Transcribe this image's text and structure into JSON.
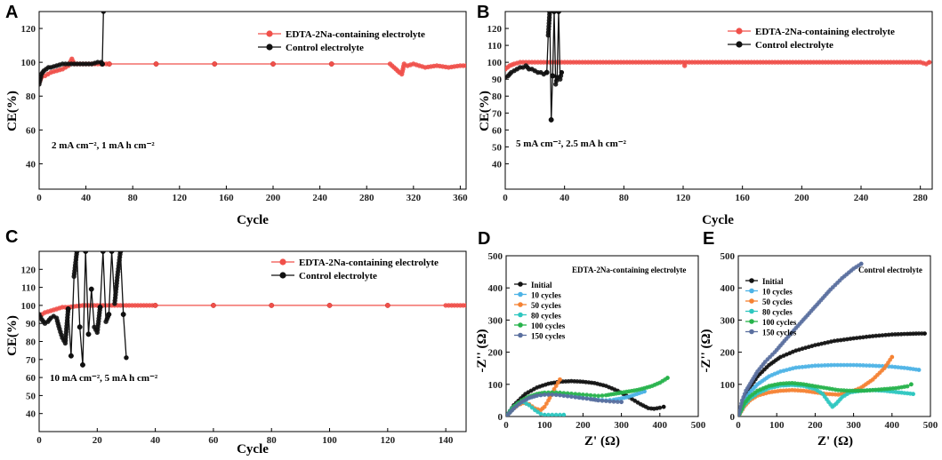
{
  "figure": {
    "colors": {
      "red": "#f0504a",
      "black": "#111111",
      "teal": "#2ec7c0",
      "skyblue": "#4db3e6",
      "orange": "#f58233",
      "green": "#27b34b",
      "slate": "#5a6f9f"
    }
  },
  "chart_data": [
    {
      "id": "A",
      "panel_label": "A",
      "type": "line",
      "title": "",
      "xlabel": "Cycle",
      "ylabel": "CE(%)",
      "xlim": [
        0,
        365
      ],
      "ylim": [
        25,
        130
      ],
      "xticks": [
        0,
        40,
        80,
        120,
        160,
        200,
        240,
        280,
        320,
        360
      ],
      "yticks": [
        40,
        60,
        80,
        100,
        120
      ],
      "annotation": "2 mA cm⁻², 1 mA h cm⁻²",
      "legend": [
        "EDTA-2Na-containing electrolyte",
        "Control electrolyte"
      ],
      "series": [
        {
          "name": "EDTA-2Na-containing electrolyte",
          "color": "red",
          "x": [
            0,
            2,
            5,
            10,
            15,
            20,
            25,
            28,
            30,
            40,
            60,
            100,
            150,
            200,
            250,
            300,
            305,
            308,
            310,
            312,
            315,
            320,
            330,
            340,
            350,
            360,
            365
          ],
          "y": [
            88,
            91,
            92,
            94,
            95,
            96,
            98,
            102,
            99,
            99,
            99,
            99,
            99,
            99,
            99,
            99,
            96,
            94,
            93,
            99,
            98,
            99,
            97,
            98,
            97,
            98,
            98
          ]
        },
        {
          "name": "Control electrolyte",
          "color": "black",
          "x": [
            0,
            1,
            2,
            4,
            6,
            8,
            10,
            15,
            20,
            25,
            30,
            35,
            40,
            45,
            50,
            53,
            54,
            55
          ],
          "y": [
            87,
            90,
            93,
            95,
            96,
            97,
            97,
            98,
            99,
            99,
            99,
            99,
            99,
            99,
            100,
            100,
            99,
            130
          ]
        }
      ]
    },
    {
      "id": "B",
      "panel_label": "B",
      "type": "line",
      "title": "",
      "xlabel": "Cycle",
      "ylabel": "CE(%)",
      "xlim": [
        0,
        288
      ],
      "ylim": [
        25,
        130
      ],
      "xticks": [
        0,
        40,
        80,
        120,
        160,
        200,
        240,
        280
      ],
      "yticks": [
        40,
        50,
        60,
        70,
        80,
        90,
        100,
        110,
        120
      ],
      "annotation": "5 mA cm⁻², 2.5 mA h cm⁻²",
      "legend": [
        "EDTA-2Na-containing electrolyte",
        "Control electrolyte"
      ],
      "series": [
        {
          "name": "EDTA-2Na-containing electrolyte",
          "color": "red",
          "x": [
            0,
            3,
            6,
            10,
            20,
            40,
            60,
            80,
            100,
            120,
            121,
            122,
            140,
            160,
            180,
            200,
            220,
            240,
            260,
            280,
            284,
            286
          ],
          "y": [
            96,
            98,
            99,
            100,
            100,
            100,
            100,
            100,
            100,
            100,
            98,
            100,
            100,
            100,
            100,
            100,
            100,
            100,
            100,
            100,
            99,
            100
          ]
        },
        {
          "name": "Control electrolyte",
          "color": "black",
          "x": [
            0,
            2,
            4,
            6,
            8,
            10,
            12,
            14,
            16,
            18,
            20,
            22,
            24,
            26,
            28,
            29,
            30,
            31,
            32,
            33,
            34,
            35,
            36,
            37,
            38
          ],
          "y": [
            91,
            92,
            94,
            95,
            96,
            97,
            97,
            98,
            96,
            96,
            95,
            94,
            94,
            93,
            94,
            116,
            130,
            66,
            92,
            130,
            87,
            91,
            130,
            90,
            94
          ]
        }
      ]
    },
    {
      "id": "C",
      "panel_label": "C",
      "type": "line",
      "title": "",
      "xlabel": "Cycle",
      "ylabel": "CE(%)",
      "xlim": [
        0,
        147
      ],
      "ylim": [
        30,
        130
      ],
      "xticks": [
        0,
        20,
        40,
        60,
        80,
        100,
        120,
        140
      ],
      "yticks": [
        40,
        50,
        60,
        70,
        80,
        90,
        100,
        110,
        120
      ],
      "annotation": "10 mA cm⁻², 5 mA h cm⁻²",
      "legend": [
        "EDTA-2Na-containing electrolyte",
        "Control electrolyte"
      ],
      "series": [
        {
          "name": "EDTA-2Na-containing electrolyte",
          "color": "red",
          "x": [
            0,
            2,
            4,
            6,
            8,
            10,
            15,
            20,
            30,
            40,
            60,
            80,
            100,
            120,
            140,
            147
          ],
          "y": [
            94,
            96,
            97,
            98,
            99,
            99,
            100,
            100,
            100,
            100,
            100,
            100,
            100,
            100,
            100,
            100
          ]
        },
        {
          "name": "Control electrolyte",
          "color": "black",
          "x": [
            0,
            1,
            2,
            3,
            4,
            5,
            6,
            7,
            8,
            9,
            10,
            11,
            12,
            13,
            14,
            15,
            16,
            17,
            18,
            19,
            20,
            21,
            22,
            23,
            24,
            25,
            26,
            27,
            28,
            29,
            30
          ],
          "y": [
            95,
            92,
            90,
            91,
            93,
            94,
            93,
            87,
            82,
            79,
            98,
            72,
            116,
            130,
            88,
            67,
            130,
            84,
            109,
            88,
            85,
            99,
            130,
            91,
            95,
            130,
            101,
            117,
            130,
            95,
            71
          ]
        }
      ]
    },
    {
      "id": "D",
      "panel_label": "D",
      "type": "scatter",
      "title": "",
      "xlabel": "Z' (Ω)",
      "ylabel": "-Z'' (Ω)",
      "xlim": [
        0,
        500
      ],
      "ylim": [
        0,
        500
      ],
      "xticks": [
        0,
        100,
        200,
        300,
        400,
        500
      ],
      "yticks": [
        0,
        100,
        200,
        300,
        400,
        500
      ],
      "annotation": "EDTA-2Na-containing electrolyte",
      "legend": [
        "Initial",
        "10 cycles",
        "50 cycles",
        "80 cycles",
        "100 cycles",
        "150 cycles"
      ],
      "series": [
        {
          "name": "Initial",
          "color": "black",
          "x": [
            0,
            20,
            50,
            80,
            110,
            140,
            170,
            200,
            230,
            260,
            290,
            320,
            350,
            370,
            385,
            400,
            410
          ],
          "y": [
            0,
            35,
            70,
            90,
            102,
            108,
            110,
            108,
            104,
            95,
            80,
            60,
            38,
            26,
            24,
            27,
            30
          ]
        },
        {
          "name": "10 cycles",
          "color": "skyblue",
          "x": [
            0,
            20,
            40,
            60,
            80,
            100,
            120,
            140,
            160,
            180,
            200,
            220,
            240,
            260,
            280,
            300,
            320,
            340,
            360
          ],
          "y": [
            0,
            25,
            45,
            58,
            65,
            68,
            70,
            68,
            65,
            62,
            58,
            55,
            52,
            50,
            52,
            56,
            62,
            70,
            78
          ]
        },
        {
          "name": "50 cycles",
          "color": "orange",
          "x": [
            0,
            15,
            30,
            45,
            60,
            75,
            90,
            100,
            110,
            120,
            130,
            140
          ],
          "y": [
            0,
            20,
            35,
            42,
            38,
            25,
            20,
            30,
            50,
            75,
            95,
            115
          ]
        },
        {
          "name": "80 cycles",
          "color": "teal",
          "x": [
            0,
            15,
            30,
            45,
            60,
            75,
            90,
            100,
            110,
            120,
            130,
            140,
            150
          ],
          "y": [
            0,
            25,
            40,
            45,
            35,
            20,
            8,
            5,
            5,
            5,
            5,
            5,
            5
          ]
        },
        {
          "name": "100 cycles",
          "color": "green",
          "x": [
            0,
            20,
            40,
            60,
            80,
            100,
            120,
            140,
            160,
            180,
            200,
            220,
            240,
            260,
            280,
            300,
            320,
            340,
            360,
            380,
            400,
            420
          ],
          "y": [
            0,
            30,
            50,
            62,
            70,
            74,
            75,
            74,
            72,
            70,
            68,
            66,
            64,
            66,
            70,
            74,
            78,
            82,
            88,
            95,
            105,
            120
          ]
        },
        {
          "name": "150 cycles",
          "color": "slate",
          "x": [
            0,
            20,
            40,
            60,
            80,
            100,
            120,
            140,
            160,
            180,
            200,
            220,
            240,
            260,
            280,
            300
          ],
          "y": [
            0,
            25,
            45,
            58,
            65,
            68,
            68,
            66,
            63,
            60,
            57,
            54,
            50,
            48,
            46,
            45
          ]
        }
      ]
    },
    {
      "id": "E",
      "panel_label": "E",
      "type": "scatter",
      "title": "",
      "xlabel": "Z' (Ω)",
      "ylabel": "-Z'' (Ω)",
      "xlim": [
        0,
        500
      ],
      "ylim": [
        0,
        500
      ],
      "xticks": [
        0,
        100,
        200,
        300,
        400,
        500
      ],
      "yticks": [
        0,
        100,
        200,
        300,
        400,
        500
      ],
      "annotation": "Control electrolyte",
      "legend": [
        "Initial",
        "10 cycles",
        "50 cycles",
        "80 cycles",
        "100 cycles",
        "150 cycles"
      ],
      "series": [
        {
          "name": "Initial",
          "color": "black",
          "x": [
            0,
            15,
            30,
            50,
            80,
            110,
            150,
            200,
            250,
            300,
            350,
            400,
            440,
            470,
            485
          ],
          "y": [
            0,
            50,
            90,
            125,
            160,
            185,
            205,
            222,
            235,
            243,
            250,
            255,
            257,
            258,
            258
          ]
        },
        {
          "name": "10 cycles",
          "color": "skyblue",
          "x": [
            0,
            15,
            30,
            50,
            80,
            110,
            150,
            200,
            250,
            300,
            350,
            400,
            440,
            470
          ],
          "y": [
            0,
            45,
            75,
            100,
            125,
            140,
            152,
            158,
            160,
            160,
            158,
            155,
            150,
            145
          ]
        },
        {
          "name": "50 cycles",
          "color": "orange",
          "x": [
            0,
            15,
            30,
            50,
            80,
            110,
            140,
            170,
            200,
            230,
            260,
            290,
            320,
            350,
            380,
            400
          ],
          "y": [
            0,
            30,
            50,
            65,
            75,
            80,
            82,
            80,
            75,
            70,
            68,
            75,
            90,
            115,
            150,
            185
          ]
        },
        {
          "name": "80 cycles",
          "color": "teal",
          "x": [
            0,
            15,
            30,
            50,
            80,
            110,
            140,
            170,
            200,
            220,
            235,
            245,
            255,
            270,
            290,
            320,
            350,
            380,
            410,
            440,
            455
          ],
          "y": [
            0,
            35,
            55,
            72,
            88,
            96,
            98,
            95,
            85,
            70,
            45,
            30,
            40,
            60,
            75,
            80,
            82,
            80,
            76,
            72,
            70
          ]
        },
        {
          "name": "100 cycles",
          "color": "green",
          "x": [
            0,
            15,
            30,
            50,
            80,
            110,
            140,
            170,
            200,
            230,
            260,
            290,
            320,
            350,
            380,
            410,
            440,
            450
          ],
          "y": [
            0,
            40,
            62,
            80,
            95,
            102,
            104,
            100,
            94,
            88,
            82,
            80,
            80,
            82,
            85,
            88,
            94,
            100
          ]
        },
        {
          "name": "150 cycles",
          "color": "slate",
          "x": [
            0,
            10,
            20,
            35,
            50,
            70,
            95,
            120,
            150,
            180,
            210,
            240,
            270,
            300,
            320
          ],
          "y": [
            0,
            50,
            80,
            110,
            140,
            170,
            200,
            235,
            275,
            315,
            355,
            395,
            430,
            460,
            475
          ]
        }
      ]
    }
  ]
}
